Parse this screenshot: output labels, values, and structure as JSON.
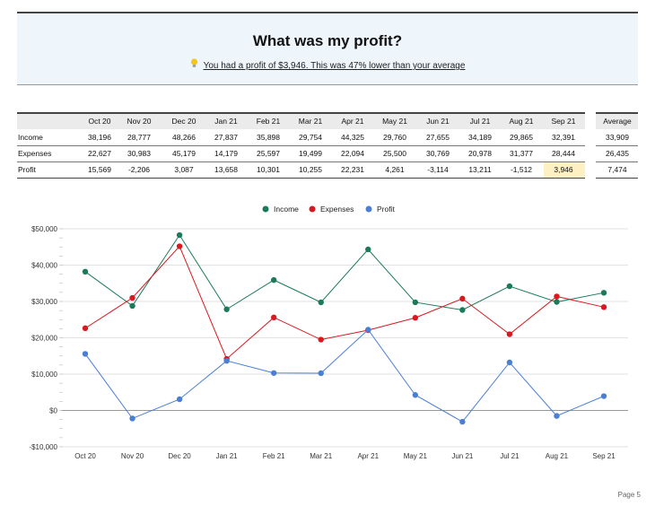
{
  "banner": {
    "title": "What was my profit?",
    "subtitle": "You had a profit of $3,946. This was 47% lower than your average",
    "icon": "lightbulb-icon"
  },
  "table": {
    "columns": [
      "Oct 20",
      "Nov 20",
      "Dec 20",
      "Jan 21",
      "Feb 21",
      "Mar 21",
      "Apr 21",
      "May 21",
      "Jun 21",
      "Jul 21",
      "Aug 21",
      "Sep 21"
    ],
    "average_header": "Average",
    "rows": [
      {
        "label": "Income",
        "values": [
          "38,196",
          "28,777",
          "48,266",
          "27,837",
          "35,898",
          "29,754",
          "44,325",
          "29,760",
          "27,655",
          "34,189",
          "29,865",
          "32,391"
        ],
        "average": "33,909"
      },
      {
        "label": "Expenses",
        "values": [
          "22,627",
          "30,983",
          "45,179",
          "14,179",
          "25,597",
          "19,499",
          "22,094",
          "25,500",
          "30,769",
          "20,978",
          "31,377",
          "28,444"
        ],
        "average": "26,435"
      },
      {
        "label": "Profit",
        "values": [
          "15,569",
          "-2,206",
          "3,087",
          "13,658",
          "10,301",
          "10,255",
          "22,231",
          "4,261",
          "-3,114",
          "13,211",
          "-1,512",
          "3,946"
        ],
        "average": "7,474"
      }
    ],
    "highlight_color": "#fdf0c2"
  },
  "chart_data": {
    "type": "line",
    "categories": [
      "Oct 20",
      "Nov 20",
      "Dec 20",
      "Jan 21",
      "Feb 21",
      "Mar 21",
      "Apr 21",
      "May 21",
      "Jun 21",
      "Jul 21",
      "Aug 21",
      "Sep 21"
    ],
    "series": [
      {
        "name": "Income",
        "color": "#1a7a5a",
        "values": [
          38196,
          28777,
          48266,
          27837,
          35898,
          29754,
          44325,
          29760,
          27655,
          34189,
          29865,
          32391
        ]
      },
      {
        "name": "Expenses",
        "color": "#d9181f",
        "values": [
          22627,
          30983,
          45179,
          14179,
          25597,
          19499,
          22094,
          25500,
          30769,
          20978,
          31377,
          28444
        ]
      },
      {
        "name": "Profit",
        "color": "#4a7fd4",
        "values": [
          15569,
          -2206,
          3087,
          13658,
          10301,
          10255,
          22231,
          4261,
          -3114,
          13211,
          -1512,
          3946
        ]
      }
    ],
    "ylim": [
      -10000,
      50000
    ],
    "yticks": [
      50000,
      40000,
      30000,
      20000,
      10000,
      0,
      -10000
    ],
    "ytick_labels": [
      "$50,000",
      "$40,000",
      "$30,000",
      "$20,000",
      "$10,000",
      "$0",
      "-$10,000"
    ],
    "grid": true,
    "legend": "top-center"
  },
  "footer": {
    "page": "Page 5"
  }
}
